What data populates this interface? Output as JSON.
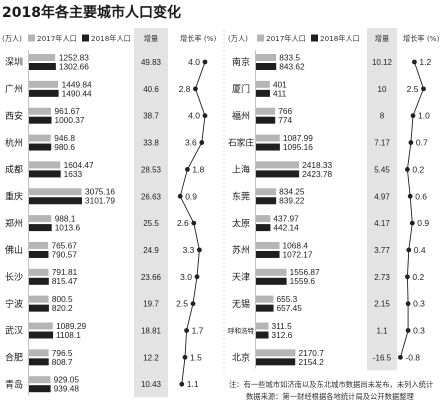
{
  "colors": {
    "bar_2017": "#b5b5b5",
    "bar_2018": "#1f1f1f",
    "band": "#e3e3e3",
    "line": "#222222",
    "divider": "#c4c4c4"
  },
  "chart_data": {
    "type": "bar",
    "title": "2018年各主要城市人口变化",
    "unit": "(万人)",
    "legend": {
      "increment": "增量",
      "growth": "增长率 (%)"
    },
    "panels": [
      {
        "categories": [
          "深圳",
          "广州",
          "西安",
          "杭州",
          "成都",
          "重庆",
          "郑州",
          "佛山",
          "长沙",
          "宁波",
          "武汉",
          "合肥",
          "青岛"
        ],
        "series": [
          {
            "name": "2017年人口",
            "values": [
              1252.83,
              1449.84,
              961.67,
              946.8,
              1604.47,
              3075.16,
              988.1,
              765.67,
              791.81,
              800.5,
              1089.29,
              796.5,
              929.05
            ]
          },
          {
            "name": "2018年人口",
            "values": [
              1302.66,
              1490.44,
              1000.37,
              980.6,
              1633,
              3101.79,
              1013.6,
              790.57,
              815.47,
              820.2,
              1108.1,
              808.7,
              939.48
            ]
          }
        ],
        "increment": [
          49.83,
          40.6,
          38.7,
          33.8,
          28.53,
          26.63,
          25.5,
          24.9,
          23.66,
          19.7,
          18.81,
          12.2,
          10.43
        ],
        "growth_rate": [
          4.0,
          2.8,
          4.0,
          3.6,
          1.8,
          0.9,
          2.6,
          3.3,
          3.0,
          2.5,
          1.7,
          1.5,
          1.1
        ]
      },
      {
        "categories": [
          "南京",
          "厦门",
          "福州",
          "石家庄",
          "上海",
          "东莞",
          "太原",
          "苏州",
          "天津",
          "无锡",
          "呼和浩特",
          "北京"
        ],
        "series": [
          {
            "name": "2017年人口",
            "values": [
              833.5,
              401,
              766,
              1087.99,
              2418.33,
              834.25,
              437.97,
              1068.4,
              1556.87,
              655.3,
              311.5,
              2170.7
            ]
          },
          {
            "name": "2018年人口",
            "values": [
              843.62,
              411,
              774,
              1095.16,
              2423.78,
              839.22,
              442.14,
              1072.17,
              1559.6,
              657.45,
              312.6,
              2154.2
            ]
          }
        ],
        "increment": [
          10.12,
          10,
          8,
          7.17,
          5.45,
          4.97,
          4.17,
          3.77,
          2.73,
          2.15,
          1.1,
          -16.5
        ],
        "growth_rate": [
          1.2,
          2.5,
          1.0,
          0.7,
          0.2,
          0.6,
          0.9,
          0.4,
          0.2,
          0.3,
          0.3,
          -0.8
        ]
      }
    ],
    "notes": [
      "注：有一些城市如济南以及东北城市数据尚未发布，未列入统计",
      "数据来源：第一财经根据各地统计局及公开数据整理"
    ]
  }
}
